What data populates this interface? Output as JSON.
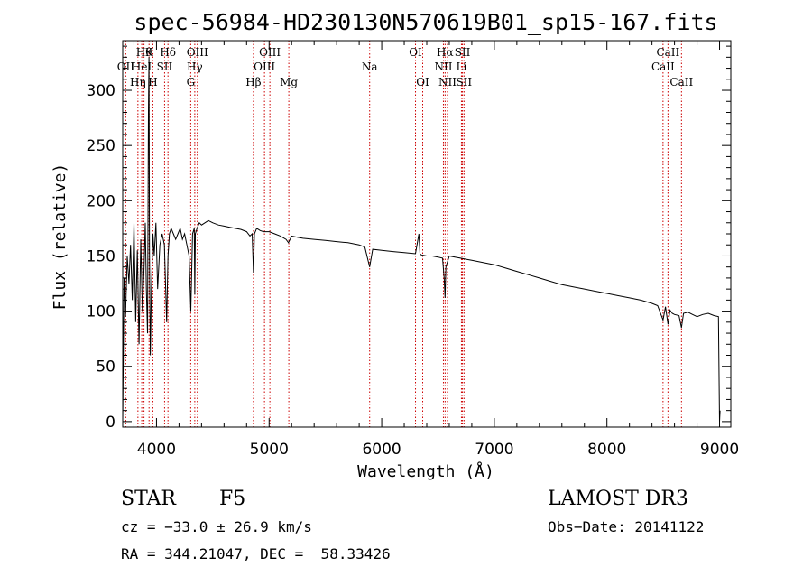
{
  "chart_data": {
    "type": "line",
    "title": "spec-56984-HD230130N570619B01_sp15-167.fits",
    "xlabel": "Wavelength (Å)",
    "ylabel": "Flux (relative)",
    "xlim": [
      3700,
      9100
    ],
    "ylim": [
      -5,
      345
    ],
    "x_ticks": [
      4000,
      5000,
      6000,
      7000,
      8000,
      9000
    ],
    "y_ticks": [
      0,
      50,
      100,
      150,
      200,
      250,
      300
    ],
    "series": [
      {
        "name": "flux",
        "x": [
          3700,
          3712,
          3725,
          3740,
          3755,
          3770,
          3785,
          3800,
          3815,
          3830,
          3845,
          3860,
          3875,
          3890,
          3900,
          3910,
          3920,
          3928,
          3933,
          3938,
          3945,
          3955,
          3968,
          3980,
          3995,
          4010,
          4030,
          4050,
          4070,
          4090,
          4102,
          4115,
          4130,
          4150,
          4170,
          4190,
          4210,
          4230,
          4250,
          4270,
          4290,
          4305,
          4320,
          4335,
          4340,
          4345,
          4360,
          4380,
          4400,
          4430,
          4460,
          4500,
          4550,
          4600,
          4650,
          4700,
          4750,
          4800,
          4830,
          4850,
          4861,
          4870,
          4890,
          4920,
          4950,
          5000,
          5050,
          5100,
          5150,
          5172,
          5200,
          5250,
          5300,
          5400,
          5500,
          5600,
          5700,
          5800,
          5850,
          5893,
          5920,
          6000,
          6100,
          6200,
          6300,
          6330,
          6340,
          6350,
          6400,
          6450,
          6500,
          6540,
          6555,
          6563,
          6570,
          6600,
          6650,
          6700,
          6750,
          6800,
          6900,
          7000,
          7100,
          7200,
          7300,
          7400,
          7500,
          7600,
          7700,
          7800,
          7900,
          8000,
          8100,
          8200,
          8300,
          8400,
          8450,
          8498,
          8520,
          8542,
          8560,
          8580,
          8600,
          8640,
          8662,
          8680,
          8720,
          8760,
          8800,
          8850,
          8900,
          8950,
          8990,
          9000,
          9005
        ],
        "y": [
          0,
          130,
          95,
          150,
          125,
          160,
          110,
          180,
          90,
          155,
          70,
          165,
          100,
          140,
          180,
          120,
          80,
          280,
          330,
          150,
          60,
          120,
          170,
          150,
          180,
          120,
          160,
          170,
          160,
          90,
          150,
          170,
          175,
          170,
          165,
          170,
          175,
          165,
          170,
          160,
          150,
          100,
          170,
          175,
          115,
          170,
          175,
          180,
          178,
          180,
          182,
          180,
          178,
          177,
          176,
          175,
          174,
          172,
          168,
          170,
          135,
          170,
          175,
          173,
          172,
          172,
          170,
          168,
          165,
          162,
          168,
          167,
          166,
          165,
          164,
          163,
          162,
          160,
          158,
          140,
          156,
          155,
          154,
          153,
          152,
          170,
          152,
          151,
          150,
          150,
          149,
          148,
          130,
          112,
          140,
          150,
          149,
          148,
          147,
          146,
          144,
          142,
          139,
          136,
          133,
          130,
          127,
          124,
          122,
          120,
          118,
          116,
          114,
          112,
          110,
          107,
          105,
          92,
          104,
          88,
          101,
          98,
          97,
          96,
          85,
          98,
          99,
          97,
          95,
          97,
          98,
          96,
          95,
          0,
          10
        ]
      }
    ],
    "spectral_lines": [
      {
        "x": 3727,
        "label": "OII",
        "row": 2
      },
      {
        "x": 3835,
        "label": "Hη",
        "row": 3
      },
      {
        "x": 3869,
        "label": "HeI",
        "row": 2
      },
      {
        "x": 3889,
        "label": "Hθ",
        "row": 1
      },
      {
        "x": 3934,
        "label": "K",
        "row": 1
      },
      {
        "x": 3968,
        "label": "H",
        "row": 3
      },
      {
        "x": 4072,
        "label": "SII",
        "row": 2
      },
      {
        "x": 4102,
        "label": "Hδ",
        "row": 1
      },
      {
        "x": 4304,
        "label": "G",
        "row": 3
      },
      {
        "x": 4340,
        "label": "Hγ",
        "row": 2
      },
      {
        "x": 4363,
        "label": "OIII",
        "row": 1
      },
      {
        "x": 4861,
        "label": "Hβ",
        "row": 3
      },
      {
        "x": 4959,
        "label": "OIII",
        "row": 2
      },
      {
        "x": 5007,
        "label": "OIII",
        "row": 1
      },
      {
        "x": 5175,
        "label": "Mg",
        "row": 3
      },
      {
        "x": 5893,
        "label": "Na",
        "row": 2
      },
      {
        "x": 6300,
        "label": "OI",
        "row": 1
      },
      {
        "x": 6364,
        "label": "OI",
        "row": 3
      },
      {
        "x": 6548,
        "label": "NII",
        "row": 2
      },
      {
        "x": 6563,
        "label": "Hα",
        "row": 1
      },
      {
        "x": 6584,
        "label": "NII",
        "row": 3
      },
      {
        "x": 6708,
        "label": "Li",
        "row": 2
      },
      {
        "x": 6717,
        "label": "SII",
        "row": 1
      },
      {
        "x": 6731,
        "label": "SII",
        "row": 3
      },
      {
        "x": 8498,
        "label": "CaII",
        "row": 2
      },
      {
        "x": 8542,
        "label": "CaII",
        "row": 1
      },
      {
        "x": 8662,
        "label": "CaII",
        "row": 3
      }
    ]
  },
  "info": {
    "object_class": "STAR",
    "subclass": "F5",
    "survey": "LAMOST DR3",
    "redshift": "cz = −33.0 ± 26.9 km/s",
    "obs_date": "Obs−Date: 20141122",
    "coords": "RA = 344.21047, DEC =  58.33426"
  },
  "colors": {
    "line_marker": "#cc0000",
    "spectrum": "#000000"
  }
}
